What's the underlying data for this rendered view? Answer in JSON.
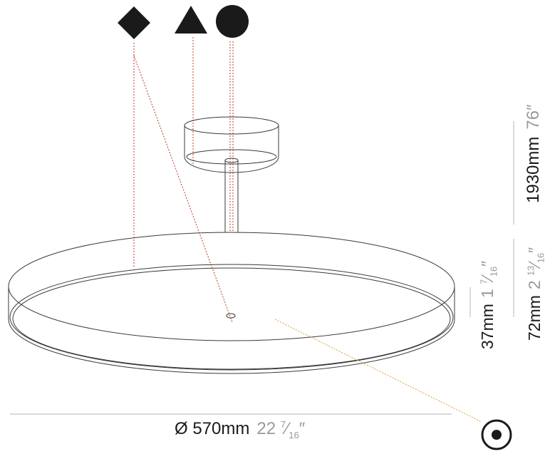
{
  "legend_icons": {
    "first": "diamond-icon",
    "second": "triangle-icon",
    "third": "circle-icon",
    "light_output": "circle-dot-icon"
  },
  "colors": {
    "outline": "#3a3a3a",
    "icon_fill": "#1a1a1a",
    "leader_red": "#c0392b",
    "leader_orange": "#e39a2b",
    "dim_line": "#b5b5b5",
    "imperial_text": "#9a9a9a"
  },
  "dimensions": {
    "diameter": {
      "metric": "Ø 570mm",
      "imperial_whole": "22",
      "imperial_num": "7",
      "imperial_den": "16"
    },
    "overall_height": {
      "metric": "1930mm",
      "imperial": "76″"
    },
    "body_height": {
      "metric": "72mm",
      "imperial_whole": "2",
      "imperial_num": "13",
      "imperial_den": "16"
    },
    "disc_height": {
      "metric": "37mm",
      "imperial_whole": "1",
      "imperial_num": "7",
      "imperial_den": "16"
    }
  }
}
